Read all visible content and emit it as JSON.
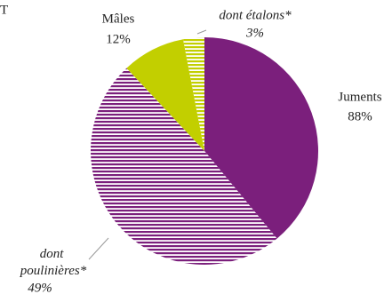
{
  "chart_data": {
    "type": "pie",
    "title": "T",
    "slices": [
      {
        "name": "Juments",
        "value": 88,
        "value_label": "88%",
        "color": "#7b1f7c",
        "part": {
          "name": "dont poulinières*",
          "value": 49,
          "value_label": "49%"
        }
      },
      {
        "name": "Mâles",
        "value": 12,
        "value_label": "12%",
        "color": "#c2cf00",
        "part": {
          "name": "dont étalons*",
          "value": 3,
          "value_label": "3%"
        }
      }
    ]
  }
}
